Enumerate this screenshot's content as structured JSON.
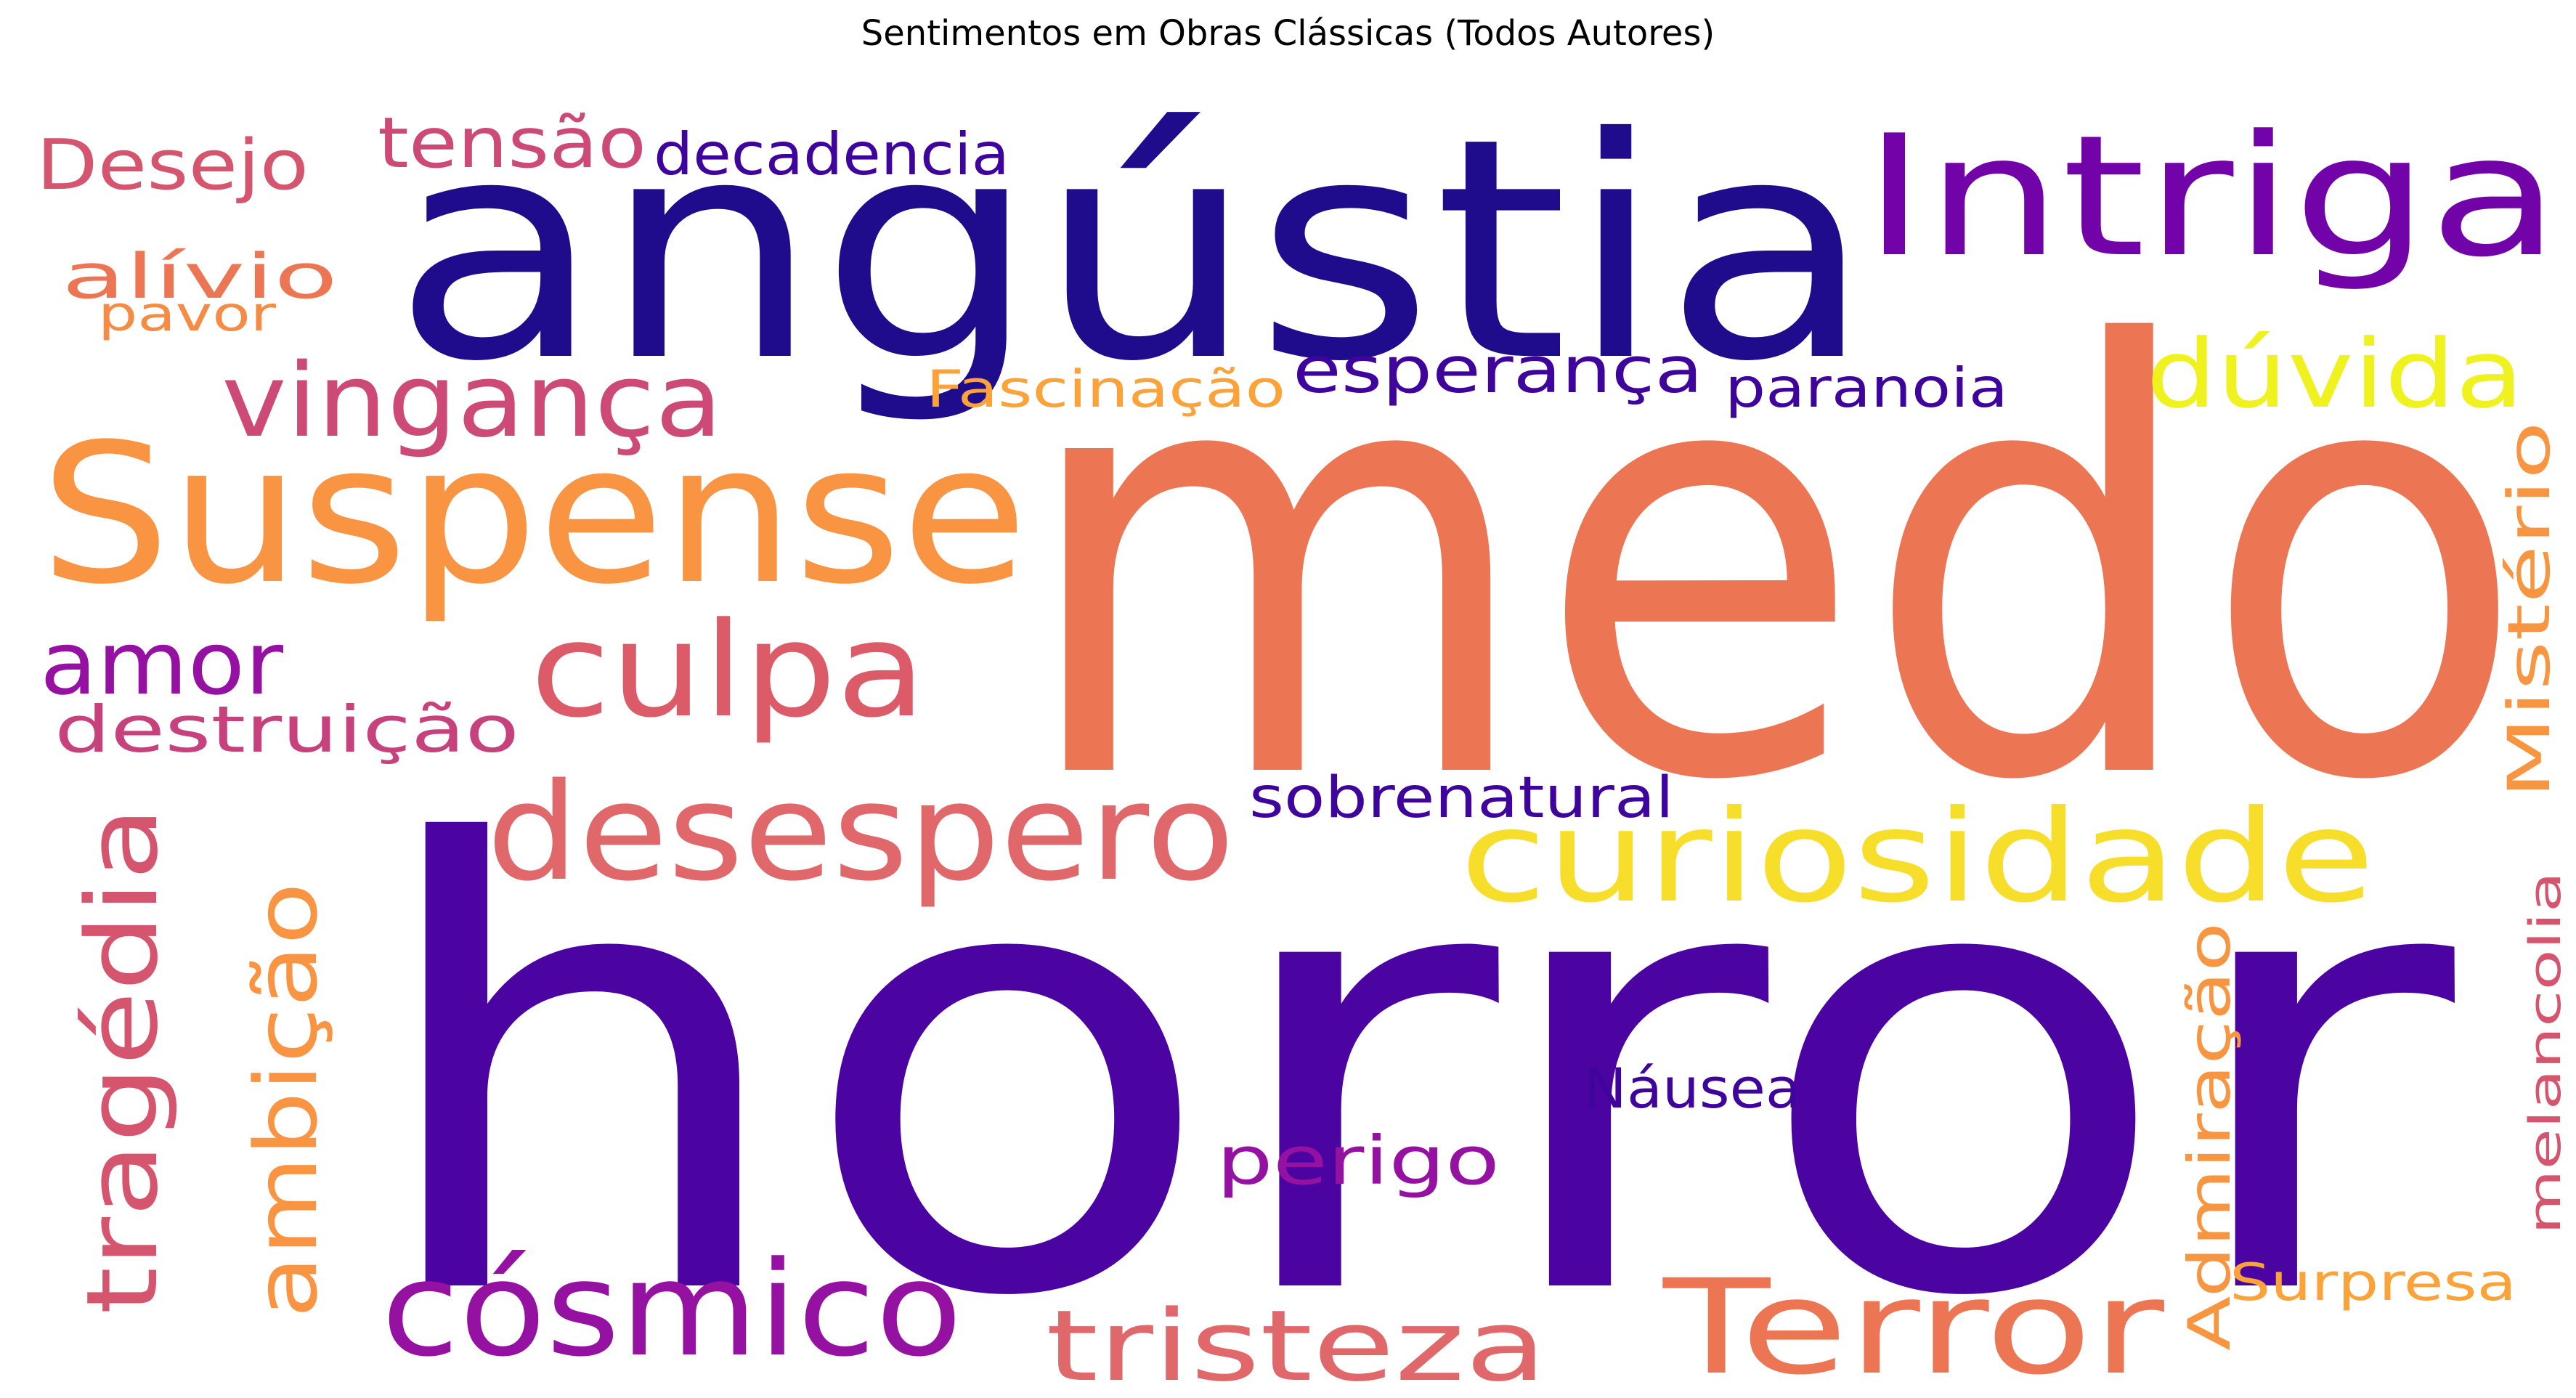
{
  "title": "Sentimentos em Obras Clássicas (Todos Autores)",
  "words": [
    {
      "text": "medo",
      "color": "#ec7653"
    },
    {
      "text": "horror",
      "color": "#4b03a1"
    },
    {
      "text": "angústia",
      "color": "#1f0c8c"
    },
    {
      "text": "Suspense",
      "color": "#f99443"
    },
    {
      "text": "Intriga",
      "color": "#7203a8"
    },
    {
      "text": "desespero",
      "color": "#e0676a"
    },
    {
      "text": "curiosidade",
      "color": "#f7de2b"
    },
    {
      "text": "culpa",
      "color": "#db5c68"
    },
    {
      "text": "vingança",
      "color": "#cd4a76"
    },
    {
      "text": "Terror",
      "color": "#ec7653"
    },
    {
      "text": "cósmico",
      "color": "#9511a1"
    },
    {
      "text": "tristeza",
      "color": "#e0676a"
    },
    {
      "text": "dúvida",
      "color": "#eff21f"
    },
    {
      "text": "tragédia",
      "color": "#d5546e"
    },
    {
      "text": "ambição",
      "color": "#f99443"
    },
    {
      "text": "amor",
      "color": "#9511a1"
    },
    {
      "text": "Desejo",
      "color": "#d5546e"
    },
    {
      "text": "tensão",
      "color": "#cd4a76"
    },
    {
      "text": "esperança",
      "color": "#3e049c"
    },
    {
      "text": "Mistério",
      "color": "#f89540"
    },
    {
      "text": "perigo",
      "color": "#9511a1"
    },
    {
      "text": "destruição",
      "color": "#c7427c"
    },
    {
      "text": "decadencia",
      "color": "#3e049c"
    },
    {
      "text": "Admiração",
      "color": "#f89540"
    },
    {
      "text": "alívio",
      "color": "#ec7653"
    },
    {
      "text": "paranoia",
      "color": "#3e049c"
    },
    {
      "text": "Fascinação",
      "color": "#fba238"
    },
    {
      "text": "sobrenatural",
      "color": "#3e049c"
    },
    {
      "text": "Náusea",
      "color": "#3e049c"
    },
    {
      "text": "melancolia",
      "color": "#d5546e"
    },
    {
      "text": "Surpresa",
      "color": "#fba238"
    },
    {
      "text": "pavor",
      "color": "#f58c46"
    }
  ]
}
